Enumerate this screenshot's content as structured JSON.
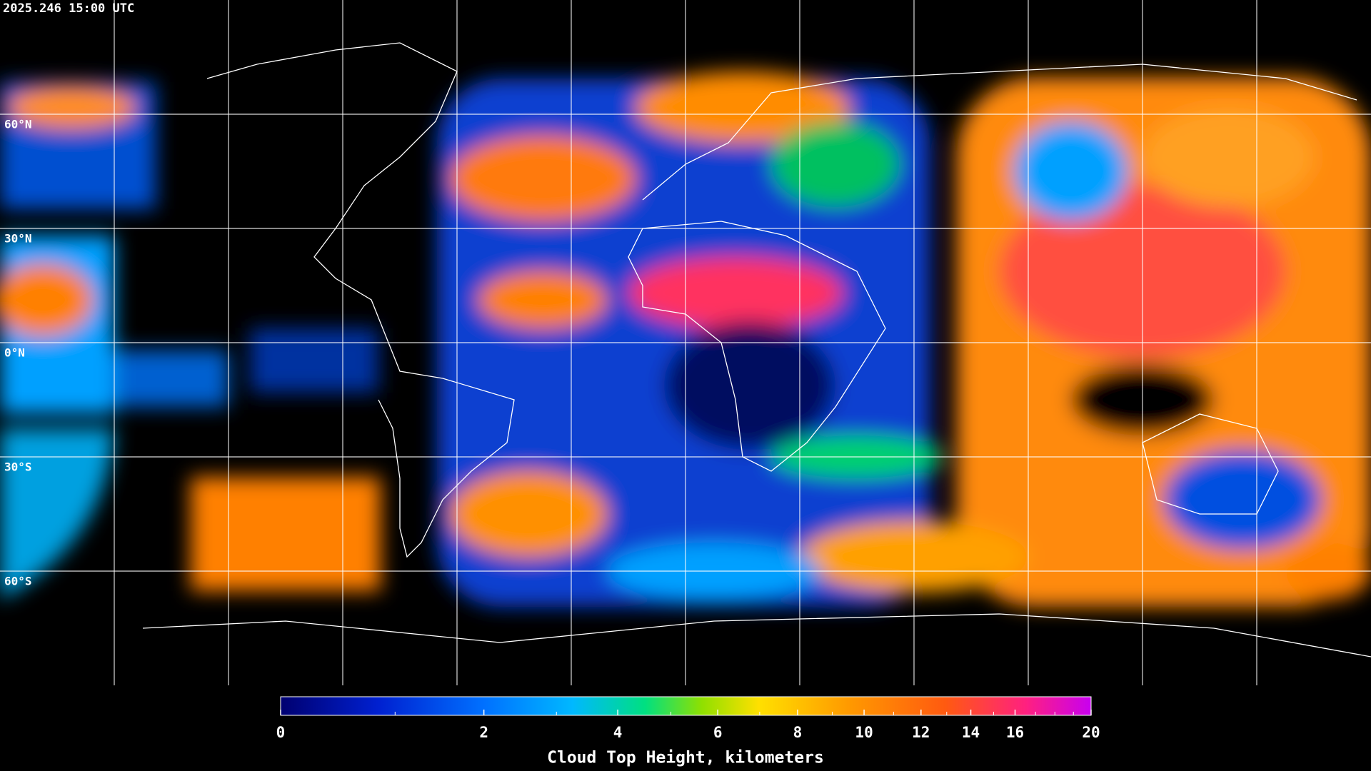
{
  "header": {
    "timestamp": "2025.246 15:00 UTC"
  },
  "map": {
    "lonlim": [
      -180,
      180
    ],
    "latlim": [
      -90,
      90
    ],
    "lon_lines": [
      -150,
      -120,
      -90,
      -60,
      -30,
      0,
      30,
      60,
      90,
      120,
      150
    ],
    "lat_lines": [
      60,
      30,
      0,
      -30,
      -60
    ],
    "lat_labels": [
      "60°N",
      "30°N",
      "0°N",
      "30°S",
      "60°S"
    ]
  },
  "colorbar": {
    "label": "Cloud Top Height, kilometers",
    "lim": [
      0,
      20
    ],
    "ticks": [
      0,
      2,
      4,
      6,
      8,
      10,
      12,
      14,
      16,
      20
    ],
    "minor_ticks": [
      1,
      3,
      5,
      7,
      9,
      11,
      13,
      15,
      17,
      18,
      19
    ]
  }
}
